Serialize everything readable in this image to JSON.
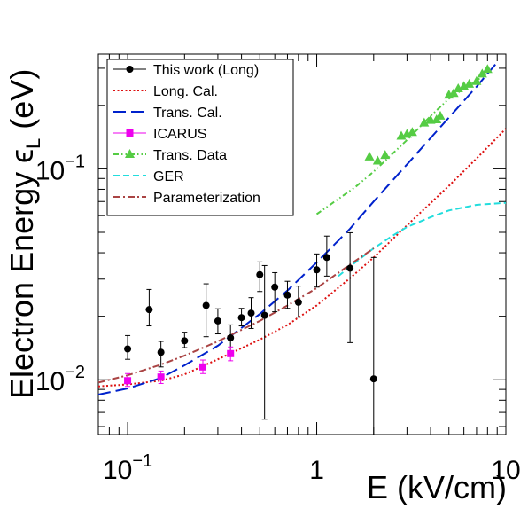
{
  "chart_data": {
    "type": "line",
    "xlabel": "E (kV/cm)",
    "ylabel": "Electron Energy ϵ",
    "ylabel_sub": "L",
    "ylabel_unit": " (eV)",
    "x_scale": "log",
    "y_scale": "log",
    "xlim": [
      0.07,
      10
    ],
    "ylim": [
      0.0055,
      0.35
    ],
    "x_ticks": [
      {
        "value": 0.1,
        "base": "10",
        "exp": "−1"
      },
      {
        "value": 1,
        "base": "1",
        "exp": ""
      },
      {
        "value": 10,
        "base": "10",
        "exp": ""
      }
    ],
    "y_ticks": [
      {
        "value": 0.01,
        "base": "10",
        "exp": "−2"
      },
      {
        "value": 0.1,
        "base": "10",
        "exp": "−1"
      }
    ],
    "grid": false,
    "legend_position": "top-left",
    "series": [
      {
        "name": "This work (Long)",
        "style": "points",
        "marker": "circle",
        "color": "#000000",
        "x": [
          0.1,
          0.13,
          0.15,
          0.2,
          0.26,
          0.3,
          0.35,
          0.4,
          0.45,
          0.5,
          0.53,
          0.6,
          0.7,
          0.8,
          1.0,
          1.13,
          1.5,
          2.0
        ],
        "y": [
          0.014,
          0.0215,
          0.0135,
          0.0153,
          0.0225,
          0.019,
          0.0158,
          0.0197,
          0.0207,
          0.0315,
          0.0202,
          0.0275,
          0.0252,
          0.0233,
          0.0332,
          0.038,
          0.0338,
          0.0101
        ],
        "y_low": [
          0.0125,
          0.018,
          0.0115,
          0.0142,
          0.016,
          0.0165,
          0.0135,
          0.018,
          0.0175,
          0.0262,
          0.0065,
          0.021,
          0.0218,
          0.0198,
          0.0275,
          0.031,
          0.015,
          0.001
        ],
        "y_high": [
          0.0162,
          0.0268,
          0.0152,
          0.0168,
          0.0285,
          0.0217,
          0.0182,
          0.0218,
          0.0245,
          0.0362,
          0.0348,
          0.0322,
          0.0293,
          0.0278,
          0.0395,
          0.048,
          0.0498,
          0.038
        ]
      },
      {
        "name": "Long. Cal.",
        "style": "dotted",
        "color": "#dd1111",
        "x": [
          0.07,
          0.1,
          0.15,
          0.2,
          0.3,
          0.5,
          0.7,
          1.0,
          1.5,
          2.0,
          3.0,
          5.0,
          7.0,
          10.0
        ],
        "y": [
          0.0093,
          0.0095,
          0.0099,
          0.0106,
          0.0125,
          0.0155,
          0.0182,
          0.0225,
          0.0303,
          0.038,
          0.054,
          0.083,
          0.112,
          0.155
        ]
      },
      {
        "name": "Trans. Cal.",
        "style": "long-dash",
        "color": "#0022cc",
        "x": [
          0.07,
          0.1,
          0.15,
          0.2,
          0.3,
          0.5,
          0.7,
          1.0,
          1.5,
          2.0,
          3.0,
          5.0,
          7.0,
          9.0
        ],
        "y": [
          0.0085,
          0.0091,
          0.0102,
          0.0117,
          0.0145,
          0.0205,
          0.0265,
          0.036,
          0.052,
          0.07,
          0.105,
          0.175,
          0.245,
          0.32
        ]
      },
      {
        "name": "ICARUS",
        "style": "points",
        "marker": "square",
        "color": "#ee00ee",
        "x": [
          0.1,
          0.15,
          0.25,
          0.35
        ],
        "y": [
          0.0099,
          0.0103,
          0.0115,
          0.0133
        ],
        "y_low": [
          0.0093,
          0.0096,
          0.0107,
          0.0123
        ],
        "y_high": [
          0.0107,
          0.011,
          0.0124,
          0.0143
        ]
      },
      {
        "name": "Trans. Data",
        "style": "dash-dot-dot",
        "marker": "triangle",
        "color": "#55cc44",
        "line_x": [
          1.0,
          1.6,
          2.0,
          3.0,
          4.0,
          5.0,
          6.0,
          7.0,
          8.0
        ],
        "line_y": [
          0.061,
          0.082,
          0.097,
          0.137,
          0.178,
          0.215,
          0.24,
          0.262,
          0.285
        ],
        "x": [
          1.9,
          2.1,
          2.3,
          2.8,
          3.0,
          3.2,
          3.7,
          4.0,
          4.3,
          4.5,
          5.0,
          5.3,
          5.6,
          6.0,
          6.4,
          7.0,
          7.5,
          8.0
        ],
        "y": [
          0.114,
          0.109,
          0.116,
          0.143,
          0.146,
          0.149,
          0.165,
          0.17,
          0.171,
          0.178,
          0.224,
          0.228,
          0.24,
          0.246,
          0.252,
          0.26,
          0.282,
          0.296
        ]
      },
      {
        "name": "GER",
        "style": "dashed",
        "color": "#22dddd",
        "x": [
          1.3,
          1.6,
          2.0,
          2.5,
          3.0,
          4.0,
          5.0,
          7.0,
          10.0
        ],
        "y": [
          0.031,
          0.036,
          0.042,
          0.048,
          0.053,
          0.059,
          0.0635,
          0.0675,
          0.069
        ]
      },
      {
        "name": "Parameterization",
        "style": "dash-dot",
        "color": "#aa4444",
        "x": [
          0.07,
          0.1,
          0.15,
          0.2,
          0.3,
          0.5,
          0.7,
          1.0,
          1.5,
          2.0
        ],
        "y": [
          0.0097,
          0.0105,
          0.0118,
          0.013,
          0.0152,
          0.019,
          0.0225,
          0.0272,
          0.0352,
          0.042
        ]
      }
    ]
  }
}
